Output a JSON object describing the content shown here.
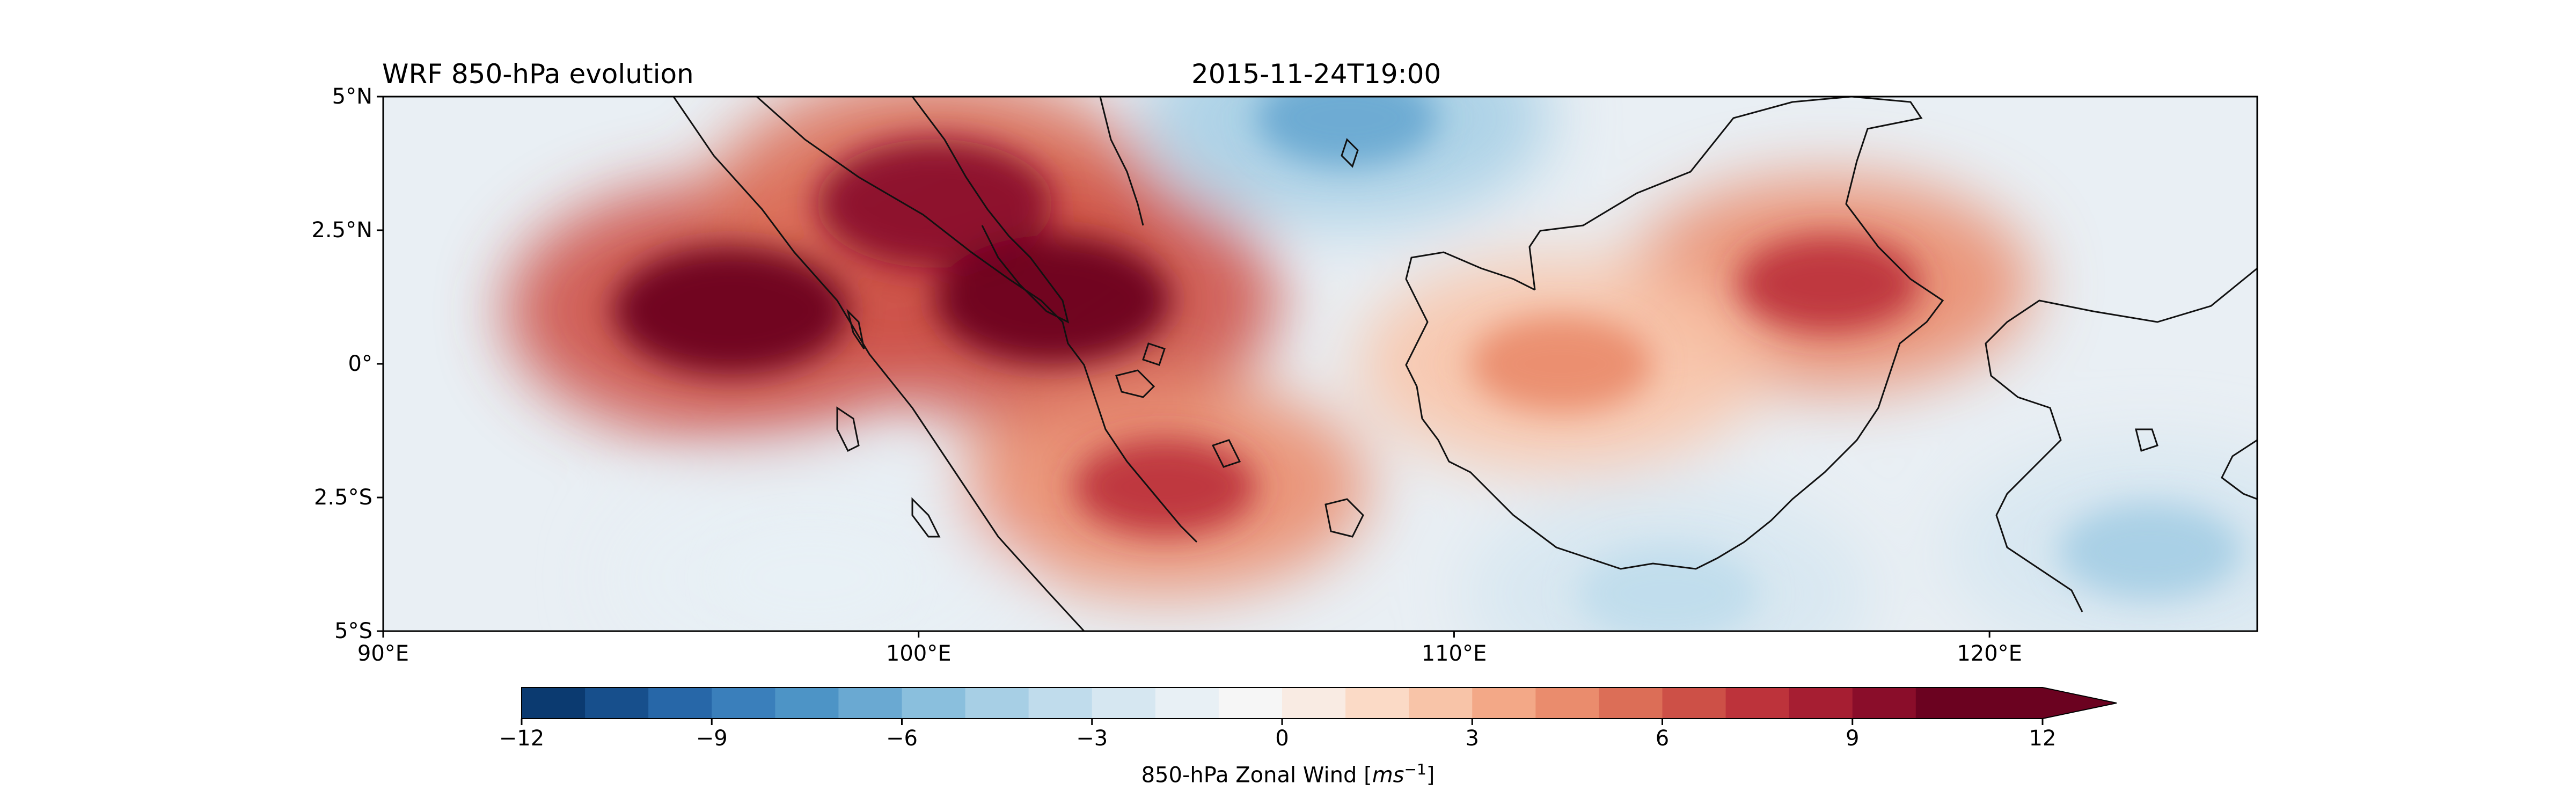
{
  "title_left": "WRF 850-hPa evolution",
  "title_center": "2015-11-24T19:00",
  "map": {
    "projection": "PlateCarree",
    "lon_range": [
      90,
      125
    ],
    "lat_range": [
      -5,
      5
    ],
    "lat_ticks": [
      {
        "value": 5,
        "label": "5°N"
      },
      {
        "value": 2.5,
        "label": "2.5°N"
      },
      {
        "value": 0,
        "label": "0°"
      },
      {
        "value": -2.5,
        "label": "2.5°S"
      },
      {
        "value": -5,
        "label": "5°S"
      }
    ],
    "lon_ticks": [
      {
        "value": 90,
        "label": "90°E"
      },
      {
        "value": 100,
        "label": "100°E"
      },
      {
        "value": 110,
        "label": "110°E"
      },
      {
        "value": 120,
        "label": "120°E"
      }
    ],
    "coastlines": true,
    "field": "850-hPa zonal wind",
    "features": [
      {
        "name": "strong westerly core",
        "lon": 96.5,
        "lat": 1.0,
        "value": 11
      },
      {
        "name": "westerly band Sumatra north",
        "lon": 100.3,
        "lat": 3.0,
        "value": 9
      },
      {
        "name": "westerly band Singapore",
        "lon": 102.5,
        "lat": 1.2,
        "value": 10
      },
      {
        "name": "Borneo westerlies",
        "lon": 117,
        "lat": 1.5,
        "value": 7
      },
      {
        "name": "Borneo interior",
        "lon": 112,
        "lat": 0.0,
        "value": 4
      },
      {
        "name": "easterlies south China Sea",
        "lon": 108,
        "lat": 4.6,
        "value": -7
      },
      {
        "name": "easterlies Java Sea",
        "lon": 114,
        "lat": -4.3,
        "value": -4
      },
      {
        "name": "easterlies Sulawesi",
        "lon": 123,
        "lat": -3.5,
        "value": -5
      },
      {
        "name": "easterlies south Sumatra",
        "lon": 98,
        "lat": -4.0,
        "value": -2
      },
      {
        "name": "westerlies Bangka",
        "lon": 104.6,
        "lat": -2.3,
        "value": 7
      }
    ]
  },
  "colorbar": {
    "label": "850-hPa Zonal Wind [",
    "units": "ms",
    "units_exp": "−1",
    "label_end": "]",
    "extend": "max",
    "levels": [
      -12,
      -11,
      -10,
      -9,
      -8,
      -7,
      -6,
      -5,
      -4,
      -3,
      -2,
      -1,
      0,
      1,
      2,
      3,
      4,
      5,
      6,
      7,
      8,
      9,
      10,
      11,
      12
    ],
    "colormap": "RdBu_r",
    "colors": [
      "#0b3a70",
      "#174f8c",
      "#2767a8",
      "#3a7fbb",
      "#4d94c6",
      "#6aa9d2",
      "#8abfdd",
      "#a7cfe5",
      "#c0dcec",
      "#d6e7f1",
      "#e8f0f5",
      "#f6f6f6",
      "#f9ebe3",
      "#fbdac6",
      "#f8c4a8",
      "#f3a887",
      "#ea8c6d",
      "#dc6e57",
      "#cd5047",
      "#bd333b",
      "#a61e32",
      "#8a0d2a",
      "#6b0220"
    ],
    "tick_labels": [
      {
        "value": -12,
        "label": "−12"
      },
      {
        "value": -9,
        "label": "−9"
      },
      {
        "value": -6,
        "label": "−6"
      },
      {
        "value": -3,
        "label": "−3"
      },
      {
        "value": 0,
        "label": "0"
      },
      {
        "value": 3,
        "label": "3"
      },
      {
        "value": 6,
        "label": "6"
      },
      {
        "value": 9,
        "label": "9"
      },
      {
        "value": 12,
        "label": "12"
      }
    ]
  }
}
